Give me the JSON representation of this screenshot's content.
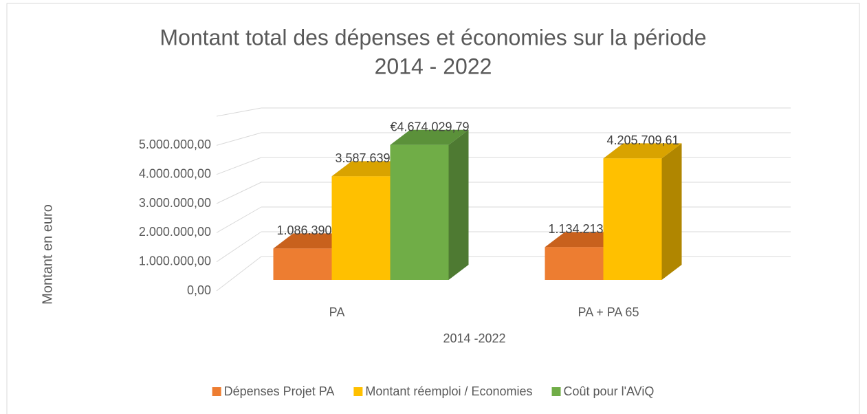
{
  "chart_data": {
    "type": "bar3d",
    "title": [
      "Montant total des dépenses et économies sur la période",
      "2014 - 2022"
    ],
    "y_label": "Montant en euro",
    "x_label": "2014 -2022",
    "categories": [
      "PA",
      "PA + PA 65"
    ],
    "series": [
      {
        "name": "Dépenses Projet PA",
        "color": "#ed7d31",
        "side": "#b85f22",
        "top": "#c8611d",
        "values": [
          1086390.05,
          1134213.63
        ],
        "value_labels": [
          "1.086.390,05",
          "1.134.213,63"
        ]
      },
      {
        "name": "Montant réemploi / Economies",
        "color": "#ffc000",
        "side": "#b08600",
        "top": "#d9a300",
        "values": [
          3587639.74,
          4205709.61
        ],
        "value_labels": [
          "3.587.639,74",
          "4.205.709,61"
        ]
      },
      {
        "name": "Coût pour l'AViQ",
        "color": "#70ad47",
        "side": "#4e7a32",
        "top": "#5b913a",
        "values": [
          4674029.79,
          null
        ],
        "value_labels": [
          "€4.674.029,79",
          null
        ]
      }
    ],
    "ylim": [
      0,
      6000000
    ],
    "yticks": [
      {
        "value": 0,
        "label": "0,00"
      },
      {
        "value": 1000000,
        "label": "1.000.000,00"
      },
      {
        "value": 2000000,
        "label": "2.000.000,00"
      },
      {
        "value": 3000000,
        "label": "3.000.000,00"
      },
      {
        "value": 4000000,
        "label": "4.000.000,00"
      },
      {
        "value": 5000000,
        "label": "5.000.000,00"
      }
    ],
    "grid": true,
    "legend": "bottom"
  }
}
